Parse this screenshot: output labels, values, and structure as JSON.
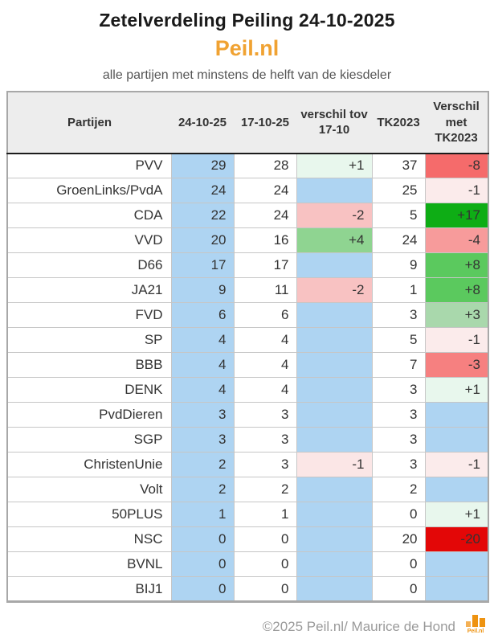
{
  "page": {
    "title": "Zetelverdeling Peiling 24-10-2025",
    "brand": "Peil.nl",
    "subtitle": "alle partijen met minstens de helft van de kiesdeler",
    "footer_credit": "©2025 Peil.nl/ Maurice de Hond",
    "logo_label": "Peil.nl",
    "logo_icon": "bar-chart-icon"
  },
  "colors": {
    "brand_orange": "#F0A232",
    "cell_blue": "#AED4F2",
    "header_bg": "#EDEDED",
    "text_dark": "#333333",
    "credit_gray": "#9A9A9A"
  },
  "table": {
    "columns": [
      "Partijen",
      "24-10-25",
      "17-10-25",
      "verschil tov 17-10",
      "TK2023",
      "Verschil met TK2023"
    ],
    "rows": [
      {
        "party": "PVV",
        "cur": "29",
        "prev": "28",
        "diff_prev": "+1",
        "tk2023": "37",
        "diff_tk": "-8",
        "diff_prev_bg": "#E8F7ED",
        "diff_tk_bg": "#F56B6B"
      },
      {
        "party": "GroenLinks/PvdA",
        "cur": "24",
        "prev": "24",
        "diff_prev": "",
        "tk2023": "25",
        "diff_tk": "-1",
        "diff_prev_bg": "#AED4F2",
        "diff_tk_bg": "#FBEBEB"
      },
      {
        "party": "CDA",
        "cur": "22",
        "prev": "24",
        "diff_prev": "-2",
        "tk2023": "5",
        "diff_tk": "+17",
        "diff_prev_bg": "#F8C2C2",
        "diff_tk_bg": "#0EAD15"
      },
      {
        "party": "VVD",
        "cur": "20",
        "prev": "16",
        "diff_prev": "+4",
        "tk2023": "24",
        "diff_tk": "-4",
        "diff_prev_bg": "#8FD491",
        "diff_tk_bg": "#F79B9B"
      },
      {
        "party": "D66",
        "cur": "17",
        "prev": "17",
        "diff_prev": "",
        "tk2023": "9",
        "diff_tk": "+8",
        "diff_prev_bg": "#AED4F2",
        "diff_tk_bg": "#5BC95E"
      },
      {
        "party": "JA21",
        "cur": "9",
        "prev": "11",
        "diff_prev": "-2",
        "tk2023": "1",
        "diff_tk": "+8",
        "diff_prev_bg": "#F8C2C2",
        "diff_tk_bg": "#5BC95E"
      },
      {
        "party": "FVD",
        "cur": "6",
        "prev": "6",
        "diff_prev": "",
        "tk2023": "3",
        "diff_tk": "+3",
        "diff_prev_bg": "#AED4F2",
        "diff_tk_bg": "#A9D8AC"
      },
      {
        "party": "SP",
        "cur": "4",
        "prev": "4",
        "diff_prev": "",
        "tk2023": "5",
        "diff_tk": "-1",
        "diff_prev_bg": "#AED4F2",
        "diff_tk_bg": "#FBEBEB"
      },
      {
        "party": "BBB",
        "cur": "4",
        "prev": "4",
        "diff_prev": "",
        "tk2023": "7",
        "diff_tk": "-3",
        "diff_prev_bg": "#AED4F2",
        "diff_tk_bg": "#F68080"
      },
      {
        "party": "DENK",
        "cur": "4",
        "prev": "4",
        "diff_prev": "",
        "tk2023": "3",
        "diff_tk": "+1",
        "diff_prev_bg": "#AED4F2",
        "diff_tk_bg": "#E8F7ED"
      },
      {
        "party": "PvdDieren",
        "cur": "3",
        "prev": "3",
        "diff_prev": "",
        "tk2023": "3",
        "diff_tk": "",
        "diff_prev_bg": "#AED4F2",
        "diff_tk_bg": "#AED4F2"
      },
      {
        "party": "SGP",
        "cur": "3",
        "prev": "3",
        "diff_prev": "",
        "tk2023": "3",
        "diff_tk": "",
        "diff_prev_bg": "#AED4F2",
        "diff_tk_bg": "#AED4F2"
      },
      {
        "party": "ChristenUnie",
        "cur": "2",
        "prev": "3",
        "diff_prev": "-1",
        "tk2023": "3",
        "diff_tk": "-1",
        "diff_prev_bg": "#FBE6E6",
        "diff_tk_bg": "#FBEBEB"
      },
      {
        "party": "Volt",
        "cur": "2",
        "prev": "2",
        "diff_prev": "",
        "tk2023": "2",
        "diff_tk": "",
        "diff_prev_bg": "#AED4F2",
        "diff_tk_bg": "#AED4F2"
      },
      {
        "party": "50PLUS",
        "cur": "1",
        "prev": "1",
        "diff_prev": "",
        "tk2023": "0",
        "diff_tk": "+1",
        "diff_prev_bg": "#AED4F2",
        "diff_tk_bg": "#E8F7ED"
      },
      {
        "party": "NSC",
        "cur": "0",
        "prev": "0",
        "diff_prev": "",
        "tk2023": "20",
        "diff_tk": "-20",
        "diff_prev_bg": "#AED4F2",
        "diff_tk_bg": "#E30707"
      },
      {
        "party": "BVNL",
        "cur": "0",
        "prev": "0",
        "diff_prev": "",
        "tk2023": "0",
        "diff_tk": "",
        "diff_prev_bg": "#AED4F2",
        "diff_tk_bg": "#AED4F2"
      },
      {
        "party": "BIJ1",
        "cur": "0",
        "prev": "0",
        "diff_prev": "",
        "tk2023": "0",
        "diff_tk": "",
        "diff_prev_bg": "#AED4F2",
        "diff_tk_bg": "#AED4F2"
      }
    ]
  },
  "chart_data": {
    "type": "table",
    "title": "Zetelverdeling Peiling 24-10-2025",
    "subtitle": "alle partijen met minstens de helft van de kiesdeler",
    "source": "©2025 Peil.nl/ Maurice de Hond",
    "columns": [
      "Partijen",
      "24-10-25",
      "17-10-25",
      "verschil tov 17-10",
      "TK2023",
      "Verschil met TK2023"
    ],
    "rows": [
      [
        "PVV",
        29,
        28,
        "+1",
        37,
        "-8"
      ],
      [
        "GroenLinks/PvdA",
        24,
        24,
        "",
        25,
        "-1"
      ],
      [
        "CDA",
        22,
        24,
        "-2",
        5,
        "+17"
      ],
      [
        "VVD",
        20,
        16,
        "+4",
        24,
        "-4"
      ],
      [
        "D66",
        17,
        17,
        "",
        9,
        "+8"
      ],
      [
        "JA21",
        9,
        11,
        "-2",
        1,
        "+8"
      ],
      [
        "FVD",
        6,
        6,
        "",
        3,
        "+3"
      ],
      [
        "SP",
        4,
        4,
        "",
        5,
        "-1"
      ],
      [
        "BBB",
        4,
        4,
        "",
        7,
        "-3"
      ],
      [
        "DENK",
        4,
        4,
        "",
        3,
        "+1"
      ],
      [
        "PvdDieren",
        3,
        3,
        "",
        3,
        ""
      ],
      [
        "SGP",
        3,
        3,
        "",
        3,
        ""
      ],
      [
        "ChristenUnie",
        2,
        3,
        "-1",
        3,
        "-1"
      ],
      [
        "Volt",
        2,
        2,
        "",
        2,
        ""
      ],
      [
        "50PLUS",
        1,
        1,
        "",
        0,
        "+1"
      ],
      [
        "NSC",
        0,
        0,
        "",
        20,
        "-20"
      ],
      [
        "BVNL",
        0,
        0,
        "",
        0,
        ""
      ],
      [
        "BIJ1",
        0,
        0,
        "",
        0,
        ""
      ]
    ]
  }
}
